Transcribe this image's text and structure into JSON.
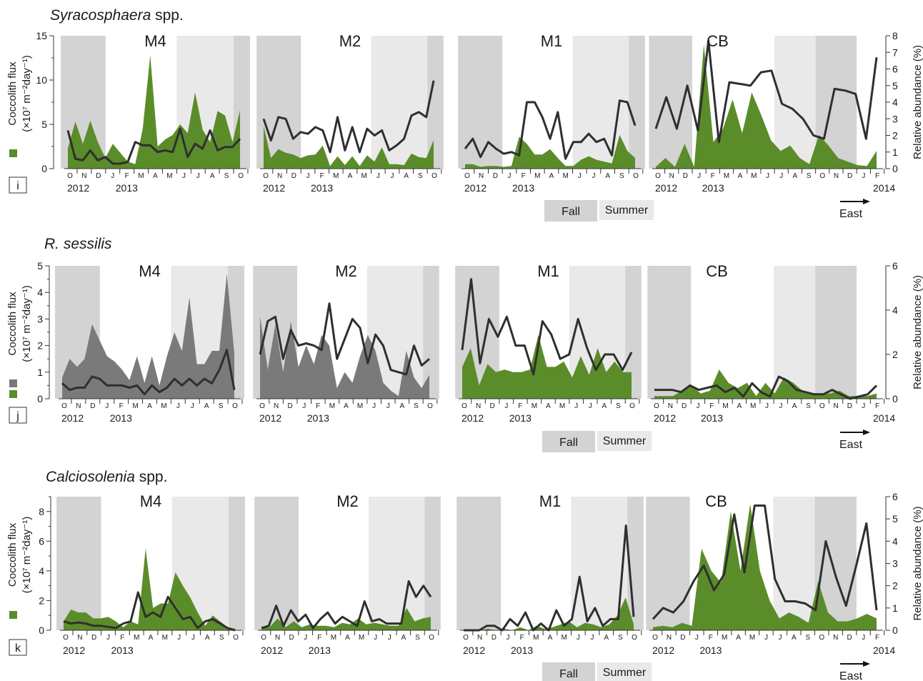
{
  "figure": {
    "colors": {
      "flux_green": "#5b8c2a",
      "flux_gray": "#7a7a7a",
      "line": "#2f2f2f",
      "fall_shade": "#d3d3d3",
      "summer_shade": "#e9e9e9"
    },
    "months": [
      "O",
      "N",
      "D",
      "J",
      "F",
      "M",
      "A",
      "M",
      "J",
      "J",
      "A",
      "S",
      "O",
      "N",
      "D",
      "J",
      "F"
    ],
    "legend": {
      "fall": "Fall",
      "summer": "Summer",
      "east": "East"
    }
  },
  "chart_data": [
    {
      "type": "area",
      "title": "Syracosphaera spp.",
      "title_italic": "Syracosphaera",
      "title_rest": " spp.",
      "panel_label": "i",
      "ylabel_left": [
        "Coccolith flux",
        "(×10⁷ m⁻²day⁻¹)"
      ],
      "ylabel_right": "Relative abundance (%)",
      "ylim_left": [
        0,
        15
      ],
      "left_ticks": [
        0,
        5,
        10,
        15
      ],
      "left_minor": [
        2.5,
        7.5,
        12.5
      ],
      "ylim_right": [
        0,
        8
      ],
      "right_ticks": [
        0,
        1,
        2,
        3,
        4,
        5,
        6,
        7,
        8
      ],
      "series": [
        {
          "site": "M4",
          "start_month": 0,
          "n_months": 13,
          "flux_color": "green",
          "flux": [
            2.3,
            5.3,
            2.8,
            5.4,
            3.0,
            1.2,
            2.8,
            1.8,
            0.8,
            0.5,
            4.5,
            12.8,
            2.5,
            3.3,
            3.8,
            5.0,
            4.0,
            8.6,
            4.4,
            3.0,
            6.5,
            6.0,
            3.0,
            6.6
          ],
          "relab": [
            2.3,
            0.6,
            0.5,
            1.1,
            0.5,
            0.7,
            0.3,
            0.3,
            0.4,
            1.6,
            1.4,
            1.4,
            1.0,
            1.1,
            1.0,
            2.4,
            0.7,
            1.5,
            1.2,
            2.3,
            1.1,
            1.3,
            1.3,
            1.8
          ]
        },
        {
          "site": "M2",
          "start_month": 0,
          "n_months": 13,
          "flux_color": "green",
          "flux": [
            4.8,
            1.2,
            2.2,
            1.8,
            1.6,
            1.2,
            1.5,
            1.6,
            2.6,
            0.3,
            1.4,
            0.4,
            1.4,
            0.3,
            1.5,
            0.8,
            2.4,
            0.5,
            0.5,
            0.4,
            1.7,
            1.3,
            1.2,
            3.2
          ],
          "relab": [
            3.0,
            1.7,
            3.1,
            3.0,
            1.8,
            2.2,
            2.1,
            2.5,
            2.3,
            1.0,
            3.1,
            1.1,
            2.5,
            1.0,
            2.4,
            2.0,
            2.3,
            1.1,
            1.4,
            1.8,
            3.2,
            3.4,
            3.1,
            5.3
          ]
        },
        {
          "site": "M1",
          "start_month": 0,
          "n_months": 13,
          "flux_color": "green",
          "flux": [
            0.5,
            0.5,
            0.2,
            0.3,
            0.3,
            0.2,
            0.3,
            3.6,
            2.8,
            1.6,
            1.6,
            2.2,
            1.2,
            0.3,
            0.3,
            1.0,
            1.4,
            1.0,
            0.8,
            0.6,
            3.8,
            2.0,
            1.2
          ],
          "relab": [
            1.2,
            1.8,
            0.7,
            1.6,
            1.2,
            0.9,
            1.0,
            0.8,
            4.0,
            4.0,
            3.1,
            1.8,
            3.4,
            0.6,
            1.6,
            1.6,
            2.1,
            1.6,
            1.8,
            0.8,
            4.1,
            4.0,
            2.6
          ]
        },
        {
          "site": "CB",
          "start_month": 0,
          "n_months": 17,
          "flux_color": "green",
          "flux": [
            0.2,
            1.2,
            0.2,
            2.8,
            0.2,
            14.0,
            3.0,
            4.5,
            7.8,
            4.0,
            8.6,
            6.0,
            3.2,
            2.0,
            2.6,
            1.2,
            0.5,
            3.8,
            2.6,
            1.2,
            0.8,
            0.4,
            0.3,
            2.0
          ],
          "relab": [
            2.4,
            4.3,
            2.4,
            5.0,
            2.3,
            7.7,
            1.6,
            5.2,
            5.1,
            5.0,
            5.8,
            5.9,
            3.9,
            3.6,
            3.0,
            2.0,
            1.8,
            4.8,
            4.7,
            4.5,
            1.8,
            6.7
          ]
        }
      ]
    },
    {
      "type": "area",
      "title": "R. sessilis",
      "title_italic": "R. sessilis",
      "title_rest": "",
      "panel_label": "j",
      "ylabel_left": [
        "Coccolith flux",
        "(×10⁷ m⁻²day⁻¹)"
      ],
      "ylabel_right": "Relative abundance (%)",
      "ylim_left": [
        0,
        5
      ],
      "left_ticks": [
        0,
        1,
        2,
        3,
        4,
        5
      ],
      "left_minor": [
        0.5,
        1.5,
        2.5,
        3.5,
        4.5
      ],
      "ylim_right": [
        0,
        6
      ],
      "right_ticks": [
        0,
        2,
        4,
        6
      ],
      "series": [
        {
          "site": "M4",
          "start_month": 0,
          "n_months": 13,
          "flux_color": "gray",
          "flux": [
            0.8,
            1.5,
            1.2,
            1.5,
            2.8,
            2.2,
            1.6,
            1.4,
            1.1,
            0.7,
            1.6,
            0.6,
            1.6,
            0.5,
            1.6,
            2.5,
            1.8,
            3.8,
            1.3,
            1.3,
            1.8,
            1.8,
            4.7,
            1.7
          ],
          "relab": [
            0.7,
            0.4,
            0.5,
            0.5,
            1.0,
            0.9,
            0.6,
            0.6,
            0.6,
            0.5,
            0.6,
            0.2,
            0.6,
            0.3,
            0.5,
            0.9,
            0.6,
            0.9,
            0.6,
            0.9,
            0.7,
            1.3,
            2.2,
            0.4
          ]
        },
        {
          "site": "M2",
          "start_month": 0,
          "n_months": 13,
          "flux_color": "gray",
          "flux": [
            3.1,
            1.1,
            2.8,
            1.0,
            2.9,
            1.2,
            2.0,
            1.3,
            2.4,
            2.0,
            0.4,
            1.0,
            0.6,
            1.6,
            2.4,
            1.8,
            0.6,
            0.3,
            0.1,
            1.8,
            0.8,
            0.4,
            0.9
          ],
          "relab": [
            2.0,
            3.5,
            3.7,
            1.8,
            3.1,
            2.4,
            2.5,
            2.4,
            2.2,
            4.3,
            1.8,
            2.7,
            3.6,
            3.2,
            1.6,
            2.9,
            2.4,
            1.3,
            1.2,
            1.1,
            2.4,
            1.5,
            1.8
          ]
        },
        {
          "site": "M1",
          "start_month": 0,
          "n_months": 13,
          "flux_color": "green",
          "flux": [
            1.2,
            1.9,
            0.5,
            1.3,
            1.0,
            1.1,
            1.0,
            1.0,
            1.1,
            2.4,
            1.2,
            1.2,
            1.4,
            0.8,
            1.6,
            0.9,
            1.9,
            1.0,
            1.4,
            1.0,
            1.0
          ],
          "relab": [
            2.2,
            5.4,
            1.6,
            3.6,
            2.8,
            3.7,
            2.4,
            2.4,
            1.1,
            3.5,
            2.9,
            1.8,
            2.0,
            3.6,
            2.3,
            1.3,
            2.0,
            2.0,
            1.3,
            2.1
          ]
        },
        {
          "site": "CB",
          "start_month": 0,
          "n_months": 17,
          "flux_color": "green",
          "flux": [
            0.1,
            0.1,
            0.1,
            0.3,
            0.5,
            0.2,
            0.3,
            1.1,
            0.6,
            0.4,
            0.6,
            0.1,
            0.6,
            0.2,
            0.8,
            0.6,
            0.3,
            0.2,
            0.2,
            0.2,
            0.3,
            0.1,
            0.1,
            0.1,
            0.2
          ],
          "relab": [
            0.4,
            0.4,
            0.4,
            0.3,
            0.6,
            0.4,
            0.5,
            0.6,
            0.3,
            0.5,
            0.1,
            0.7,
            0.3,
            0.1,
            1.0,
            0.8,
            0.4,
            0.3,
            0.2,
            0.2,
            0.4,
            0.2,
            0.0,
            0.1,
            0.2,
            0.6
          ]
        }
      ]
    },
    {
      "type": "area",
      "title": "Calciosolenia spp.",
      "title_italic": "Calciosolenia",
      "title_rest": " spp.",
      "panel_label": "k",
      "ylabel_left": [
        "Coccolith flux",
        "(×10⁷ m⁻²day⁻¹)"
      ],
      "ylabel_right": "Relative abundance (%)",
      "ylim_left": [
        0,
        9
      ],
      "left_ticks": [
        0,
        2,
        4,
        6,
        8
      ],
      "left_minor": [
        1,
        3,
        5,
        7,
        9
      ],
      "ylim_right": [
        0,
        6
      ],
      "right_ticks": [
        0,
        1,
        2,
        3,
        4,
        5,
        6
      ],
      "series": [
        {
          "site": "M4",
          "start_month": 0,
          "n_months": 13,
          "flux_color": "green",
          "flux": [
            0.6,
            1.4,
            1.2,
            1.2,
            0.8,
            0.8,
            0.9,
            0.6,
            0.2,
            0.6,
            0.4,
            5.5,
            1.5,
            1.8,
            1.8,
            3.9,
            3.0,
            2.2,
            1.2,
            0.3,
            1.0,
            0.6,
            0.2,
            0.1
          ],
          "relab": [
            0.4,
            0.3,
            0.35,
            0.3,
            0.2,
            0.2,
            0.15,
            0.1,
            0.3,
            0.4,
            1.7,
            0.6,
            0.8,
            0.6,
            1.5,
            1.0,
            0.5,
            0.6,
            0.1,
            0.4,
            0.5,
            0.3,
            0.1,
            0.0
          ]
        },
        {
          "site": "M2",
          "start_month": 0,
          "n_months": 13,
          "flux_color": "green",
          "flux": [
            0.2,
            0.2,
            0.8,
            0.2,
            0.6,
            0.2,
            0.4,
            0.3,
            0.3,
            0.2,
            0.5,
            0.4,
            0.8,
            0.4,
            0.5,
            0.4,
            0.3,
            0.3,
            1.5,
            0.6,
            0.8,
            0.9
          ],
          "relab": [
            0.1,
            0.2,
            1.1,
            0.2,
            0.9,
            0.4,
            0.7,
            0.1,
            0.5,
            0.8,
            0.3,
            0.6,
            0.4,
            0.2,
            1.3,
            0.4,
            0.5,
            0.3,
            0.3,
            0.3,
            2.2,
            1.5,
            2.0,
            1.5
          ]
        },
        {
          "site": "M1",
          "start_month": 0,
          "n_months": 13,
          "flux_color": "green",
          "flux": [
            0,
            0,
            0,
            0.1,
            0,
            0.1,
            0,
            0.2,
            0,
            0.3,
            0.1,
            0.2,
            0.4,
            0.6,
            0.2,
            0.5,
            0.4,
            0.2,
            0.4,
            1.0,
            2.2,
            0.4
          ],
          "relab": [
            0,
            0,
            0,
            0.2,
            0.2,
            0,
            0.5,
            0.2,
            0.8,
            0,
            0.3,
            0,
            0.9,
            0.2,
            0.5,
            2.4,
            0.4,
            1.0,
            0.2,
            0.5,
            0.5,
            4.7,
            0.6
          ]
        },
        {
          "site": "CB",
          "start_month": 0,
          "n_months": 17,
          "flux_color": "green",
          "flux": [
            0.2,
            0.3,
            0.2,
            0.5,
            0.3,
            5.5,
            4.0,
            3.2,
            8.0,
            4.0,
            8.5,
            4.0,
            2.0,
            0.8,
            1.2,
            0.9,
            0.5,
            3.3,
            1.2,
            0.6,
            0.6,
            0.8,
            1.1,
            0.8
          ],
          "relab": [
            0.5,
            1.0,
            0.8,
            1.3,
            2.2,
            2.9,
            1.8,
            2.5,
            5.2,
            2.6,
            5.6,
            5.6,
            2.3,
            1.3,
            1.3,
            1.2,
            0.9,
            4.0,
            2.4,
            1.1,
            2.9,
            4.8,
            0.9
          ]
        }
      ]
    }
  ],
  "year_labels": {
    "y2012": "2012",
    "y2013": "2013",
    "y2014": "2014"
  }
}
